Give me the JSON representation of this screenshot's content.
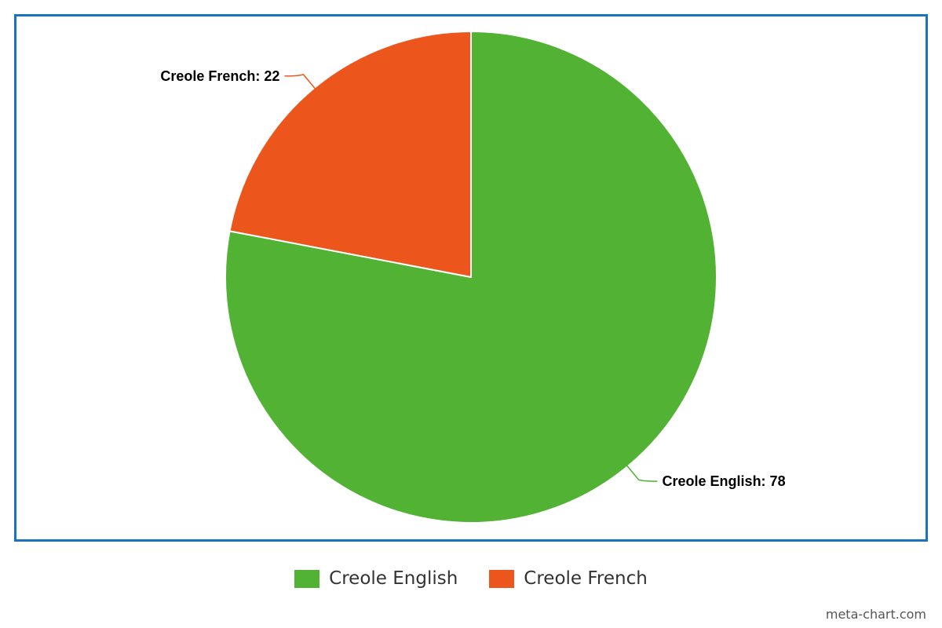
{
  "chart_data": {
    "type": "pie",
    "categories": [
      "Creole English",
      "Creole French"
    ],
    "values": [
      78,
      22
    ],
    "colors": [
      "#52b234",
      "#ec561c"
    ],
    "data_labels": [
      "Creole English: 78",
      "Creole French: 22"
    ],
    "legend": {
      "placement": "bottom",
      "entries": [
        "Creole English",
        "Creole French"
      ]
    },
    "title": ""
  },
  "frame": {
    "border_color": "#1a73c2"
  },
  "watermark": "meta-chart.com"
}
